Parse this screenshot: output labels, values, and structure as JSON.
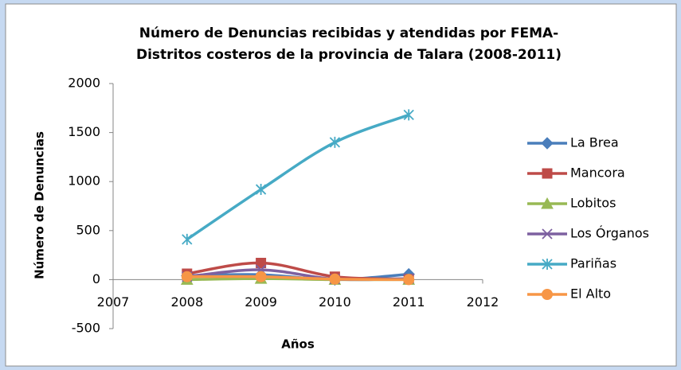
{
  "chart_data": {
    "type": "line",
    "title": [
      "Número de Denuncias recibidas y atendidas por FEMA-",
      "Distritos costeros de la provincia de Talara (2008-2011)"
    ],
    "x_label": "Años",
    "y_label": "Número de Denuncias",
    "x": [
      2008,
      2009,
      2010,
      2011
    ],
    "xlim": [
      2007,
      2012
    ],
    "xticks": [
      2007,
      2008,
      2009,
      2010,
      2011,
      2012
    ],
    "ylim": [
      -500,
      2000
    ],
    "yticks": [
      -500,
      0,
      500,
      1000,
      1500,
      2000
    ],
    "grid": false,
    "smooth": true,
    "legend": "right",
    "series": [
      {
        "name": "La Brea",
        "color": "#4a7ebb",
        "marker": "diamond",
        "values": [
          40,
          50,
          0,
          55
        ]
      },
      {
        "name": "Mancora",
        "color": "#be4b48",
        "marker": "square",
        "values": [
          60,
          170,
          30,
          5
        ]
      },
      {
        "name": "Lobitos",
        "color": "#98b954",
        "marker": "triangle",
        "values": [
          0,
          10,
          0,
          0
        ]
      },
      {
        "name": "Los Órganos",
        "color": "#7d60a0",
        "marker": "x",
        "values": [
          30,
          100,
          5,
          10
        ]
      },
      {
        "name": "Pariñas",
        "color": "#46aac5",
        "marker": "star",
        "values": [
          410,
          920,
          1400,
          1680
        ]
      },
      {
        "name": "El Alto",
        "color": "#f79646",
        "marker": "circle",
        "values": [
          30,
          30,
          5,
          0
        ]
      }
    ]
  }
}
